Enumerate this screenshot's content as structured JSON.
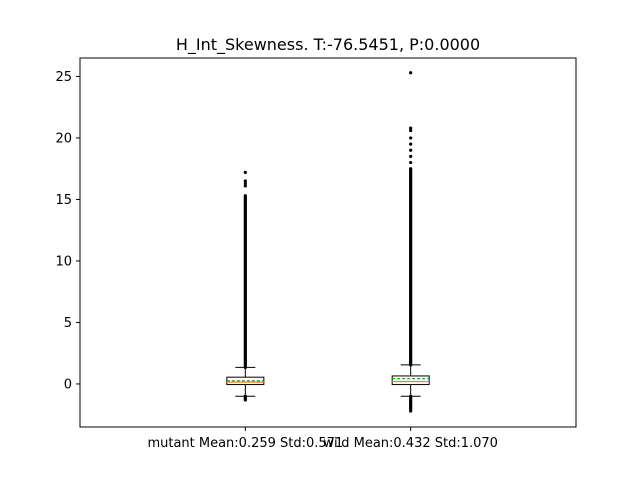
{
  "chart_data": {
    "type": "box",
    "title": "H_Int_Skewness. T:-76.5451, P:0.0000",
    "xlabel": "",
    "ylabel": "",
    "categories": [
      "mutant Mean:0.259 Std:0.571",
      "wild Mean:0.432 Std:1.070"
    ],
    "ylim": [
      -3.5,
      26.5
    ],
    "yticks": [
      0,
      5,
      10,
      15,
      20,
      25
    ],
    "grid": false,
    "mean_line_style": "dashed",
    "colors": {
      "median": "#ff7f0e",
      "mean": "#2ca02c",
      "box": "#000000",
      "outlier": "#000000"
    },
    "series": [
      {
        "category": "mutant Mean:0.259 Std:0.571",
        "whisker_low": -1.0,
        "q1": -0.05,
        "median": 0.15,
        "q3": 0.55,
        "whisker_high": 1.35,
        "mean": 0.259,
        "outlier_ranges": [
          [
            1.35,
            15.3
          ],
          [
            -1.3,
            -1.0
          ]
        ],
        "outliers": [
          16.1,
          16.3,
          16.5,
          17.2
        ]
      },
      {
        "category": "wild Mean:0.432 Std:1.070",
        "whisker_low": -1.0,
        "q1": -0.05,
        "median": 0.2,
        "q3": 0.65,
        "whisker_high": 1.55,
        "mean": 0.432,
        "outlier_ranges": [
          [
            1.55,
            17.5
          ],
          [
            -2.2,
            -1.0
          ]
        ],
        "outliers": [
          18.0,
          18.5,
          19.0,
          19.5,
          20.0,
          20.6,
          20.8,
          25.3
        ]
      }
    ]
  }
}
